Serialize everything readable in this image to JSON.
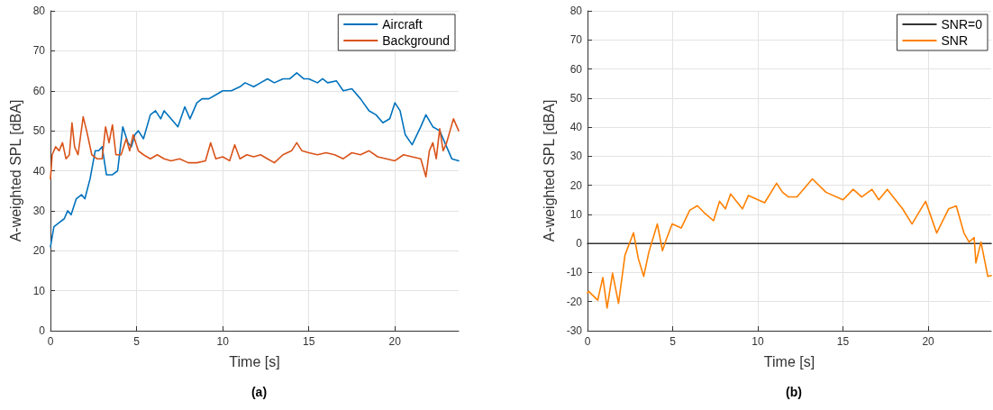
{
  "chart_data": [
    {
      "type": "line",
      "title": "(a)",
      "xlabel": "Time [s]",
      "ylabel": "A-weighted SPL [dBA]",
      "xlim": [
        0,
        23.7
      ],
      "xticks": [
        0,
        5,
        10,
        15,
        20
      ],
      "ylim": [
        0,
        80
      ],
      "yticks": [
        0,
        10,
        20,
        30,
        40,
        50,
        60,
        70,
        80
      ],
      "grid": true,
      "legend": "top right",
      "marker": "none",
      "line_style": "solid",
      "series": [
        {
          "name": "Aircraft",
          "color": "#0072bd",
          "x": [
            0,
            0.2,
            0.5,
            0.8,
            1.0,
            1.2,
            1.5,
            1.8,
            2.0,
            2.3,
            2.6,
            2.8,
            3.0,
            3.25,
            3.6,
            3.9,
            4.2,
            4.5,
            4.7,
            4.9,
            5.1,
            5.4,
            5.8,
            6.1,
            6.4,
            6.6,
            7.0,
            7.4,
            7.8,
            8.1,
            8.5,
            8.8,
            9.2,
            9.6,
            10.0,
            10.5,
            11.0,
            11.3,
            11.8,
            12.2,
            12.6,
            13.0,
            13.5,
            13.9,
            14.3,
            14.7,
            15.0,
            15.5,
            15.8,
            16.1,
            16.6,
            17.0,
            17.5,
            18.0,
            18.5,
            18.9,
            19.3,
            19.7,
            20.0,
            20.3,
            20.6,
            21.0,
            21.5,
            21.8,
            22.2,
            22.6,
            23.0,
            23.3,
            23.7
          ],
          "values": [
            21,
            26,
            27,
            28,
            30,
            29,
            33,
            34,
            33,
            38,
            45,
            45,
            46,
            39,
            39,
            40,
            51,
            47,
            46,
            49,
            50,
            48,
            54,
            55,
            53,
            55,
            53,
            51,
            56,
            53,
            57,
            58,
            58,
            59,
            60,
            60,
            61,
            62,
            61,
            62,
            63,
            62,
            63,
            63,
            64.5,
            63,
            63,
            62,
            63,
            62,
            62.5,
            60,
            60.5,
            58,
            55,
            54,
            52,
            53,
            57,
            55,
            49,
            46.5,
            51,
            54,
            51,
            50,
            46,
            43,
            42.5
          ]
        },
        {
          "name": "Background",
          "color": "#d95319",
          "x": [
            0,
            0.1,
            0.3,
            0.5,
            0.7,
            0.9,
            1.1,
            1.25,
            1.4,
            1.6,
            1.9,
            2.1,
            2.4,
            2.7,
            3.0,
            3.2,
            3.4,
            3.6,
            3.8,
            4.1,
            4.4,
            4.6,
            4.8,
            5.1,
            5.4,
            5.8,
            6.2,
            6.6,
            7.0,
            7.5,
            8.0,
            8.5,
            9.0,
            9.3,
            9.6,
            10.0,
            10.4,
            10.7,
            11.0,
            11.4,
            11.8,
            12.2,
            12.6,
            13.0,
            13.5,
            14.0,
            14.3,
            14.6,
            15.0,
            15.5,
            16.0,
            16.5,
            17.0,
            17.5,
            18.0,
            18.5,
            19.0,
            19.5,
            20.0,
            20.5,
            21.0,
            21.5,
            21.8,
            22.0,
            22.2,
            22.4,
            22.6,
            22.8,
            23.0,
            23.2,
            23.4,
            23.7
          ],
          "values": [
            38,
            44,
            46,
            45,
            47,
            43,
            44,
            52,
            46,
            44,
            53.5,
            50,
            44,
            43,
            43,
            51,
            47,
            51.5,
            44,
            44,
            48,
            45,
            49,
            45,
            44,
            43,
            44,
            43,
            42.5,
            43,
            42,
            42,
            42.5,
            47,
            43,
            43.5,
            42.5,
            46.5,
            43,
            44,
            43.5,
            44,
            43,
            42,
            44,
            45,
            47,
            45,
            44.5,
            44,
            44.5,
            44,
            43,
            44.5,
            44,
            45,
            43.5,
            43,
            42.5,
            44,
            43.5,
            43,
            38.5,
            45,
            47,
            43,
            50.5,
            45,
            47,
            50,
            53,
            50
          ]
        }
      ]
    },
    {
      "type": "line",
      "title": "(b)",
      "xlabel": "Time [s]",
      "ylabel": "A-weighted SPL [dBA]",
      "xlim": [
        0,
        23.7
      ],
      "xticks": [
        0,
        5,
        10,
        15,
        20
      ],
      "ylim": [
        -30,
        80
      ],
      "yticks": [
        -30,
        -20,
        -10,
        0,
        10,
        20,
        30,
        40,
        50,
        60,
        70,
        80
      ],
      "grid": true,
      "legend": "top right",
      "marker": "none",
      "line_style": "solid",
      "series": [
        {
          "name": "SNR=0",
          "color": "#333333",
          "x": [
            0,
            23.7
          ],
          "values": [
            0,
            0
          ]
        },
        {
          "name": "SNR",
          "color": "#ff8000",
          "x": [
            0,
            0.07,
            0.6,
            0.9,
            1.15,
            1.47,
            1.82,
            2.2,
            2.7,
            2.98,
            3.3,
            3.6,
            4.1,
            4.4,
            4.6,
            4.97,
            5.5,
            6.0,
            6.45,
            6.9,
            7.4,
            7.75,
            8.1,
            8.4,
            9.1,
            9.45,
            10.4,
            11.1,
            11.45,
            11.8,
            12.3,
            13.2,
            14.0,
            15.0,
            15.6,
            16.1,
            16.7,
            17.1,
            17.6,
            18.5,
            19.05,
            19.85,
            20.5,
            21.2,
            21.65,
            22.1,
            22.4,
            22.7,
            22.8,
            23.1,
            23.5,
            23.7
          ],
          "values": [
            -17,
            -16.5,
            -19.5,
            -11.7,
            -22.2,
            -10.2,
            -20.6,
            -4,
            3.7,
            -5.1,
            -11.3,
            -3,
            6.7,
            -2.5,
            1,
            6.7,
            5.3,
            11.4,
            13,
            10.3,
            7.8,
            14.5,
            11.9,
            17,
            11.9,
            16.5,
            14,
            20.7,
            17.6,
            16,
            16,
            22.2,
            17.6,
            15,
            18.6,
            16,
            18.6,
            15,
            18.6,
            11.9,
            6.7,
            14.5,
            3.6,
            11.9,
            12.9,
            3.6,
            0.5,
            2,
            -6.7,
            0.5,
            -11.3,
            -11
          ]
        }
      ]
    }
  ]
}
